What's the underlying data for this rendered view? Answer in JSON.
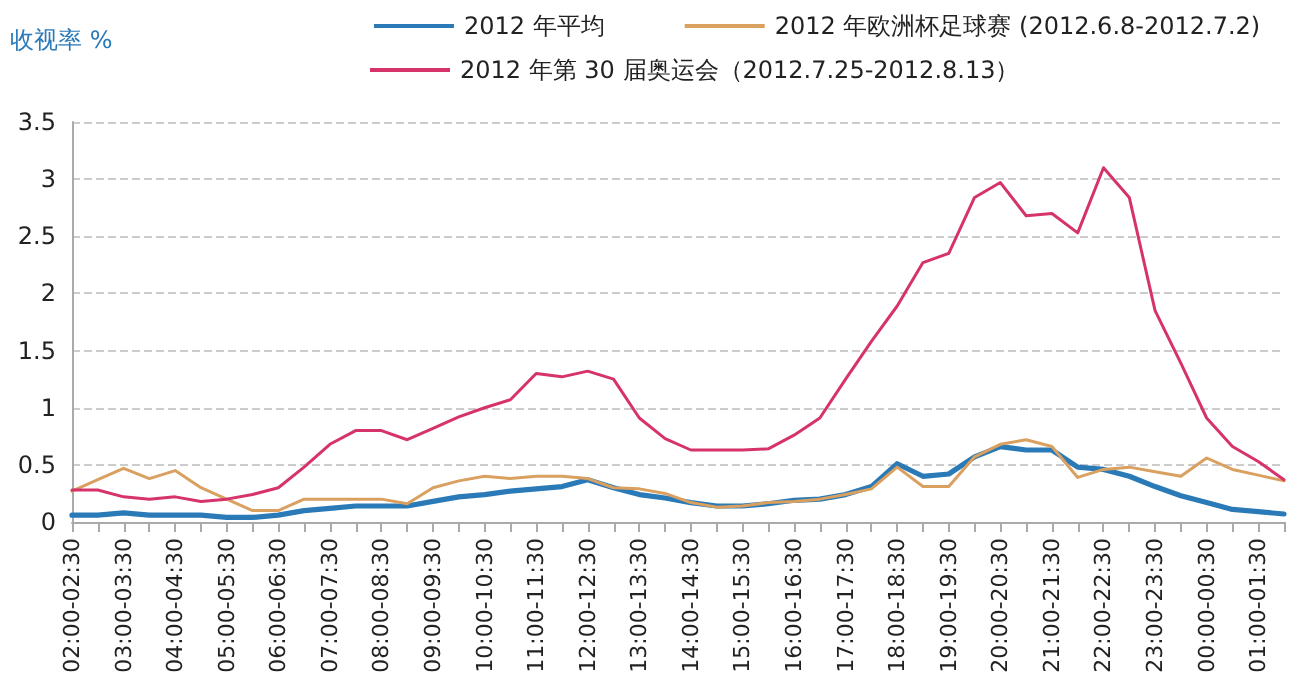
{
  "chart_data": {
    "type": "line",
    "ylabel": "收视率 %",
    "categories": [
      "02:00-02:30",
      null,
      "03:00-03:30",
      null,
      "04:00-04:30",
      null,
      "05:00-05:30",
      null,
      "06:00-06:30",
      null,
      "07:00-07:30",
      null,
      "08:00-08:30",
      null,
      "09:00-09:30",
      null,
      "10:00-10:30",
      null,
      "11:00-11:30",
      null,
      "12:00-12:30",
      null,
      "13:00-13:30",
      null,
      "14:00-14:30",
      null,
      "15:00-15:30",
      null,
      "16:00-16:30",
      null,
      "17:00-17:30",
      null,
      "18:00-18:30",
      null,
      "19:00-19:30",
      null,
      "20:00-20:30",
      null,
      "21:00-21:30",
      null,
      "22:00-22:30",
      null,
      "23:00-23:30",
      null,
      "00:00-00:30",
      null,
      "01:00-01:30",
      null
    ],
    "series": [
      {
        "name": "2012 年平均",
        "color": "#2a7ab8",
        "values": [
          0.06,
          0.06,
          0.08,
          0.06,
          0.06,
          0.06,
          0.04,
          0.04,
          0.06,
          0.1,
          0.12,
          0.14,
          0.14,
          0.14,
          0.18,
          0.22,
          0.24,
          0.27,
          0.29,
          0.31,
          0.37,
          0.3,
          0.24,
          0.21,
          0.17,
          0.14,
          0.14,
          0.16,
          0.19,
          0.2,
          0.24,
          0.31,
          0.51,
          0.4,
          0.42,
          0.57,
          0.66,
          0.63,
          0.63,
          0.48,
          0.46,
          0.4,
          0.31,
          0.23,
          0.17,
          0.11,
          0.09,
          0.07
        ]
      },
      {
        "name": "2012 年欧洲杯足球赛 (2012.6.8-2012.7.2)",
        "color": "#d9a060",
        "values": [
          0.27,
          0.37,
          0.47,
          0.38,
          0.45,
          0.3,
          0.2,
          0.1,
          0.1,
          0.2,
          0.2,
          0.2,
          0.2,
          0.16,
          0.3,
          0.36,
          0.4,
          0.38,
          0.4,
          0.4,
          0.38,
          0.3,
          0.29,
          0.25,
          0.17,
          0.13,
          0.14,
          0.17,
          0.18,
          0.2,
          0.24,
          0.29,
          0.48,
          0.31,
          0.31,
          0.57,
          0.68,
          0.72,
          0.66,
          0.39,
          0.46,
          0.48,
          0.44,
          0.4,
          0.56,
          0.46,
          0.41,
          0.36
        ]
      },
      {
        "name": "2012 年第 30 届奥运会（2012.7.25-2012.8.13）",
        "color": "#d6336c",
        "values": [
          0.28,
          0.28,
          0.22,
          0.2,
          0.22,
          0.18,
          0.2,
          0.24,
          0.3,
          0.48,
          0.68,
          0.8,
          0.8,
          0.72,
          0.82,
          0.92,
          1.0,
          1.07,
          1.3,
          1.27,
          1.32,
          1.25,
          0.91,
          0.73,
          0.63,
          0.63,
          0.63,
          0.64,
          0.76,
          0.91,
          1.25,
          1.58,
          1.89,
          2.27,
          2.35,
          2.84,
          2.97,
          2.68,
          2.7,
          2.53,
          3.1,
          2.84,
          1.85,
          1.39,
          0.91,
          0.66,
          0.53,
          0.37
        ]
      }
    ],
    "ylim": [
      0,
      3.5
    ],
    "yticks": [
      0,
      0.5,
      1,
      1.5,
      2,
      2.5,
      3,
      3.5
    ],
    "grid": "y",
    "legend": "top",
    "marker": "none",
    "line_style": "solid"
  }
}
